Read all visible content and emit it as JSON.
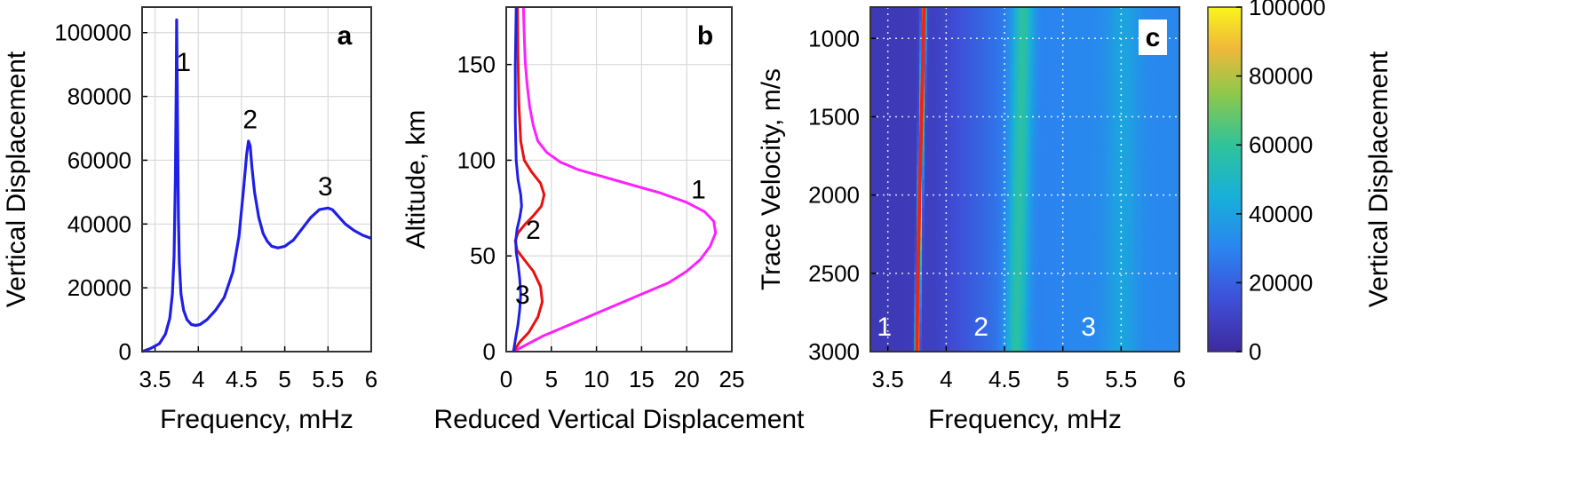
{
  "chart_data": [
    {
      "type": "line",
      "panel_label": "a",
      "xlabel": "Frequency, mHz",
      "ylabel": "Vertical Displacement",
      "xlim": [
        3.35,
        6.0
      ],
      "ylim": [
        0,
        108000
      ],
      "xticks": [
        "3.5",
        "4",
        "4.5",
        "5",
        "5.5",
        "6"
      ],
      "yticks": [
        "0",
        "20000",
        "40000",
        "60000",
        "80000",
        "100000"
      ],
      "grid": true,
      "series": [
        {
          "color": "#1f1fe6",
          "x": [
            3.35,
            3.45,
            3.55,
            3.62,
            3.67,
            3.7,
            3.72,
            3.735,
            3.745,
            3.75,
            3.76,
            3.77,
            3.78,
            3.8,
            3.83,
            3.87,
            3.92,
            3.97,
            4.02,
            4.1,
            4.2,
            4.3,
            4.4,
            4.47,
            4.52,
            4.56,
            4.58,
            4.6,
            4.62,
            4.65,
            4.7,
            4.75,
            4.8,
            4.85,
            4.92,
            5.0,
            5.1,
            5.2,
            5.3,
            5.4,
            5.5,
            5.55,
            5.6,
            5.7,
            5.8,
            5.9,
            6.0
          ],
          "y": [
            0,
            1000,
            2500,
            5500,
            10500,
            18000,
            30000,
            55000,
            85000,
            104000,
            72000,
            42000,
            28000,
            18000,
            13000,
            10000,
            8500,
            8200,
            8500,
            10000,
            13000,
            17000,
            25000,
            36000,
            50000,
            62000,
            66000,
            64500,
            58000,
            50000,
            42000,
            37000,
            34500,
            33000,
            32500,
            33000,
            35000,
            38500,
            42000,
            44500,
            45000,
            44500,
            43000,
            40000,
            38000,
            36500,
            35500
          ]
        }
      ],
      "annotations": [
        {
          "text": "1",
          "x": 3.83,
          "y": 88000
        },
        {
          "text": "2",
          "x": 4.6,
          "y": 70000
        },
        {
          "text": "3",
          "x": 5.47,
          "y": 49000
        }
      ]
    },
    {
      "type": "line",
      "panel_label": "b",
      "xlabel": "Reduced Vertical Displacement",
      "ylabel": "Altitude, km",
      "xlim": [
        0,
        25
      ],
      "ylim": [
        0,
        180
      ],
      "xticks": [
        "0",
        "5",
        "10",
        "15",
        "20",
        "25"
      ],
      "yticks": [
        "0",
        "50",
        "100",
        "150"
      ],
      "grid": true,
      "series": [
        {
          "color": "#ff20ff",
          "x": [
            0.8,
            2,
            4,
            6,
            8,
            10,
            12,
            14,
            16,
            18,
            20,
            21.5,
            22.6,
            23.2,
            23,
            22,
            20,
            17,
            14,
            11,
            8,
            6,
            4.5,
            3.5,
            3,
            2.6,
            2.3,
            2.1,
            2.0,
            1.9
          ],
          "y": [
            0,
            3,
            8,
            12,
            16,
            20,
            24,
            28,
            32,
            36,
            42,
            48,
            55,
            62,
            68,
            73,
            78,
            83,
            87,
            91,
            95,
            99,
            104,
            110,
            118,
            128,
            140,
            152,
            165,
            180
          ]
        },
        {
          "color": "#e81010",
          "x": [
            0.8,
            1.5,
            2.5,
            3.5,
            4.0,
            3.8,
            3.0,
            2.0,
            1.2,
            1.0,
            1.3,
            2.0,
            3.0,
            3.9,
            4.2,
            3.8,
            2.8,
            2.0,
            1.6,
            1.4,
            1.3,
            1.25
          ],
          "y": [
            0,
            5,
            10,
            18,
            26,
            34,
            42,
            48,
            53,
            58,
            62,
            66,
            71,
            76,
            82,
            88,
            94,
            100,
            110,
            130,
            155,
            180
          ]
        },
        {
          "color": "#2020e0",
          "x": [
            0.8,
            1.0,
            1.3,
            1.5,
            1.6,
            1.5,
            1.3,
            1.1,
            1.05,
            1.2,
            1.5,
            1.7,
            1.6,
            1.3,
            1.1,
            1.0,
            1.0,
            1.1
          ],
          "y": [
            0,
            6,
            14,
            22,
            30,
            38,
            46,
            52,
            58,
            64,
            70,
            76,
            82,
            90,
            100,
            120,
            150,
            180
          ]
        }
      ],
      "annotations": [
        {
          "text": "1",
          "x": 21.3,
          "y": 80
        },
        {
          "text": "2",
          "x": 3.0,
          "y": 59
        },
        {
          "text": "3",
          "x": 1.8,
          "y": 25
        }
      ]
    },
    {
      "type": "heatmap",
      "panel_label": "c",
      "xlabel": "Frequency, mHz",
      "ylabel": "Trace Velocity, m/s",
      "xlim": [
        3.35,
        6.0
      ],
      "ylim": [
        3000,
        800
      ],
      "xticks": [
        "3.5",
        "4",
        "4.5",
        "5",
        "5.5",
        "6"
      ],
      "yticks": [
        "1000",
        "1500",
        "2000",
        "2500",
        "3000"
      ],
      "colorbar_label": "Vertical Displacement",
      "colorbar_ticks": [
        "0",
        "20000",
        "40000",
        "60000",
        "80000",
        "100000"
      ],
      "clim": [
        0,
        100000
      ],
      "grid": true,
      "ridges": [
        {
          "label": "1",
          "freq_at_3000": 3.75,
          "freq_at_800": 3.81,
          "peak": 100000
        },
        {
          "label": "2",
          "freq_at_3000": 4.6,
          "freq_at_800": 4.66,
          "peak": 62000
        },
        {
          "label": "3",
          "freq_at_3000": 5.5,
          "freq_at_800": 5.52,
          "peak": 40000
        }
      ],
      "annotations": [
        {
          "text": "1",
          "x": 3.47,
          "y": 2840
        },
        {
          "text": "2",
          "x": 4.3,
          "y": 2840
        },
        {
          "text": "3",
          "x": 5.22,
          "y": 2840
        }
      ]
    }
  ]
}
